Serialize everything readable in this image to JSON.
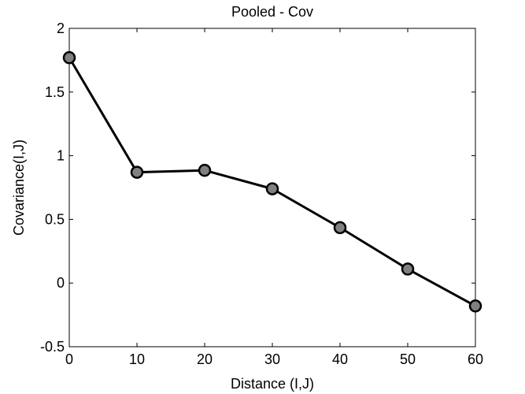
{
  "chart_data": {
    "type": "line",
    "title": "Pooled - Cov",
    "xlabel": "Distance (I,J)",
    "ylabel": "Covariance(I,J)",
    "xlim": [
      0,
      60
    ],
    "ylim": [
      -0.5,
      2
    ],
    "xticks": [
      0,
      10,
      20,
      30,
      40,
      50,
      60
    ],
    "yticks": [
      -0.5,
      0,
      0.5,
      1,
      1.5,
      2
    ],
    "xtick_labels": [
      "0",
      "10",
      "20",
      "30",
      "40",
      "50",
      "60"
    ],
    "ytick_labels": [
      "-0.5",
      "0",
      "0.5",
      "1",
      "1.5",
      "2"
    ],
    "grid": false,
    "series": [
      {
        "x": [
          0,
          10,
          20,
          30,
          40,
          50,
          60
        ],
        "y": [
          1.77,
          0.87,
          0.885,
          0.74,
          0.435,
          0.11,
          -0.18
        ]
      }
    ],
    "colors": {
      "line": "#000000",
      "marker_fill": "#808080",
      "marker_edge": "#000000"
    }
  }
}
